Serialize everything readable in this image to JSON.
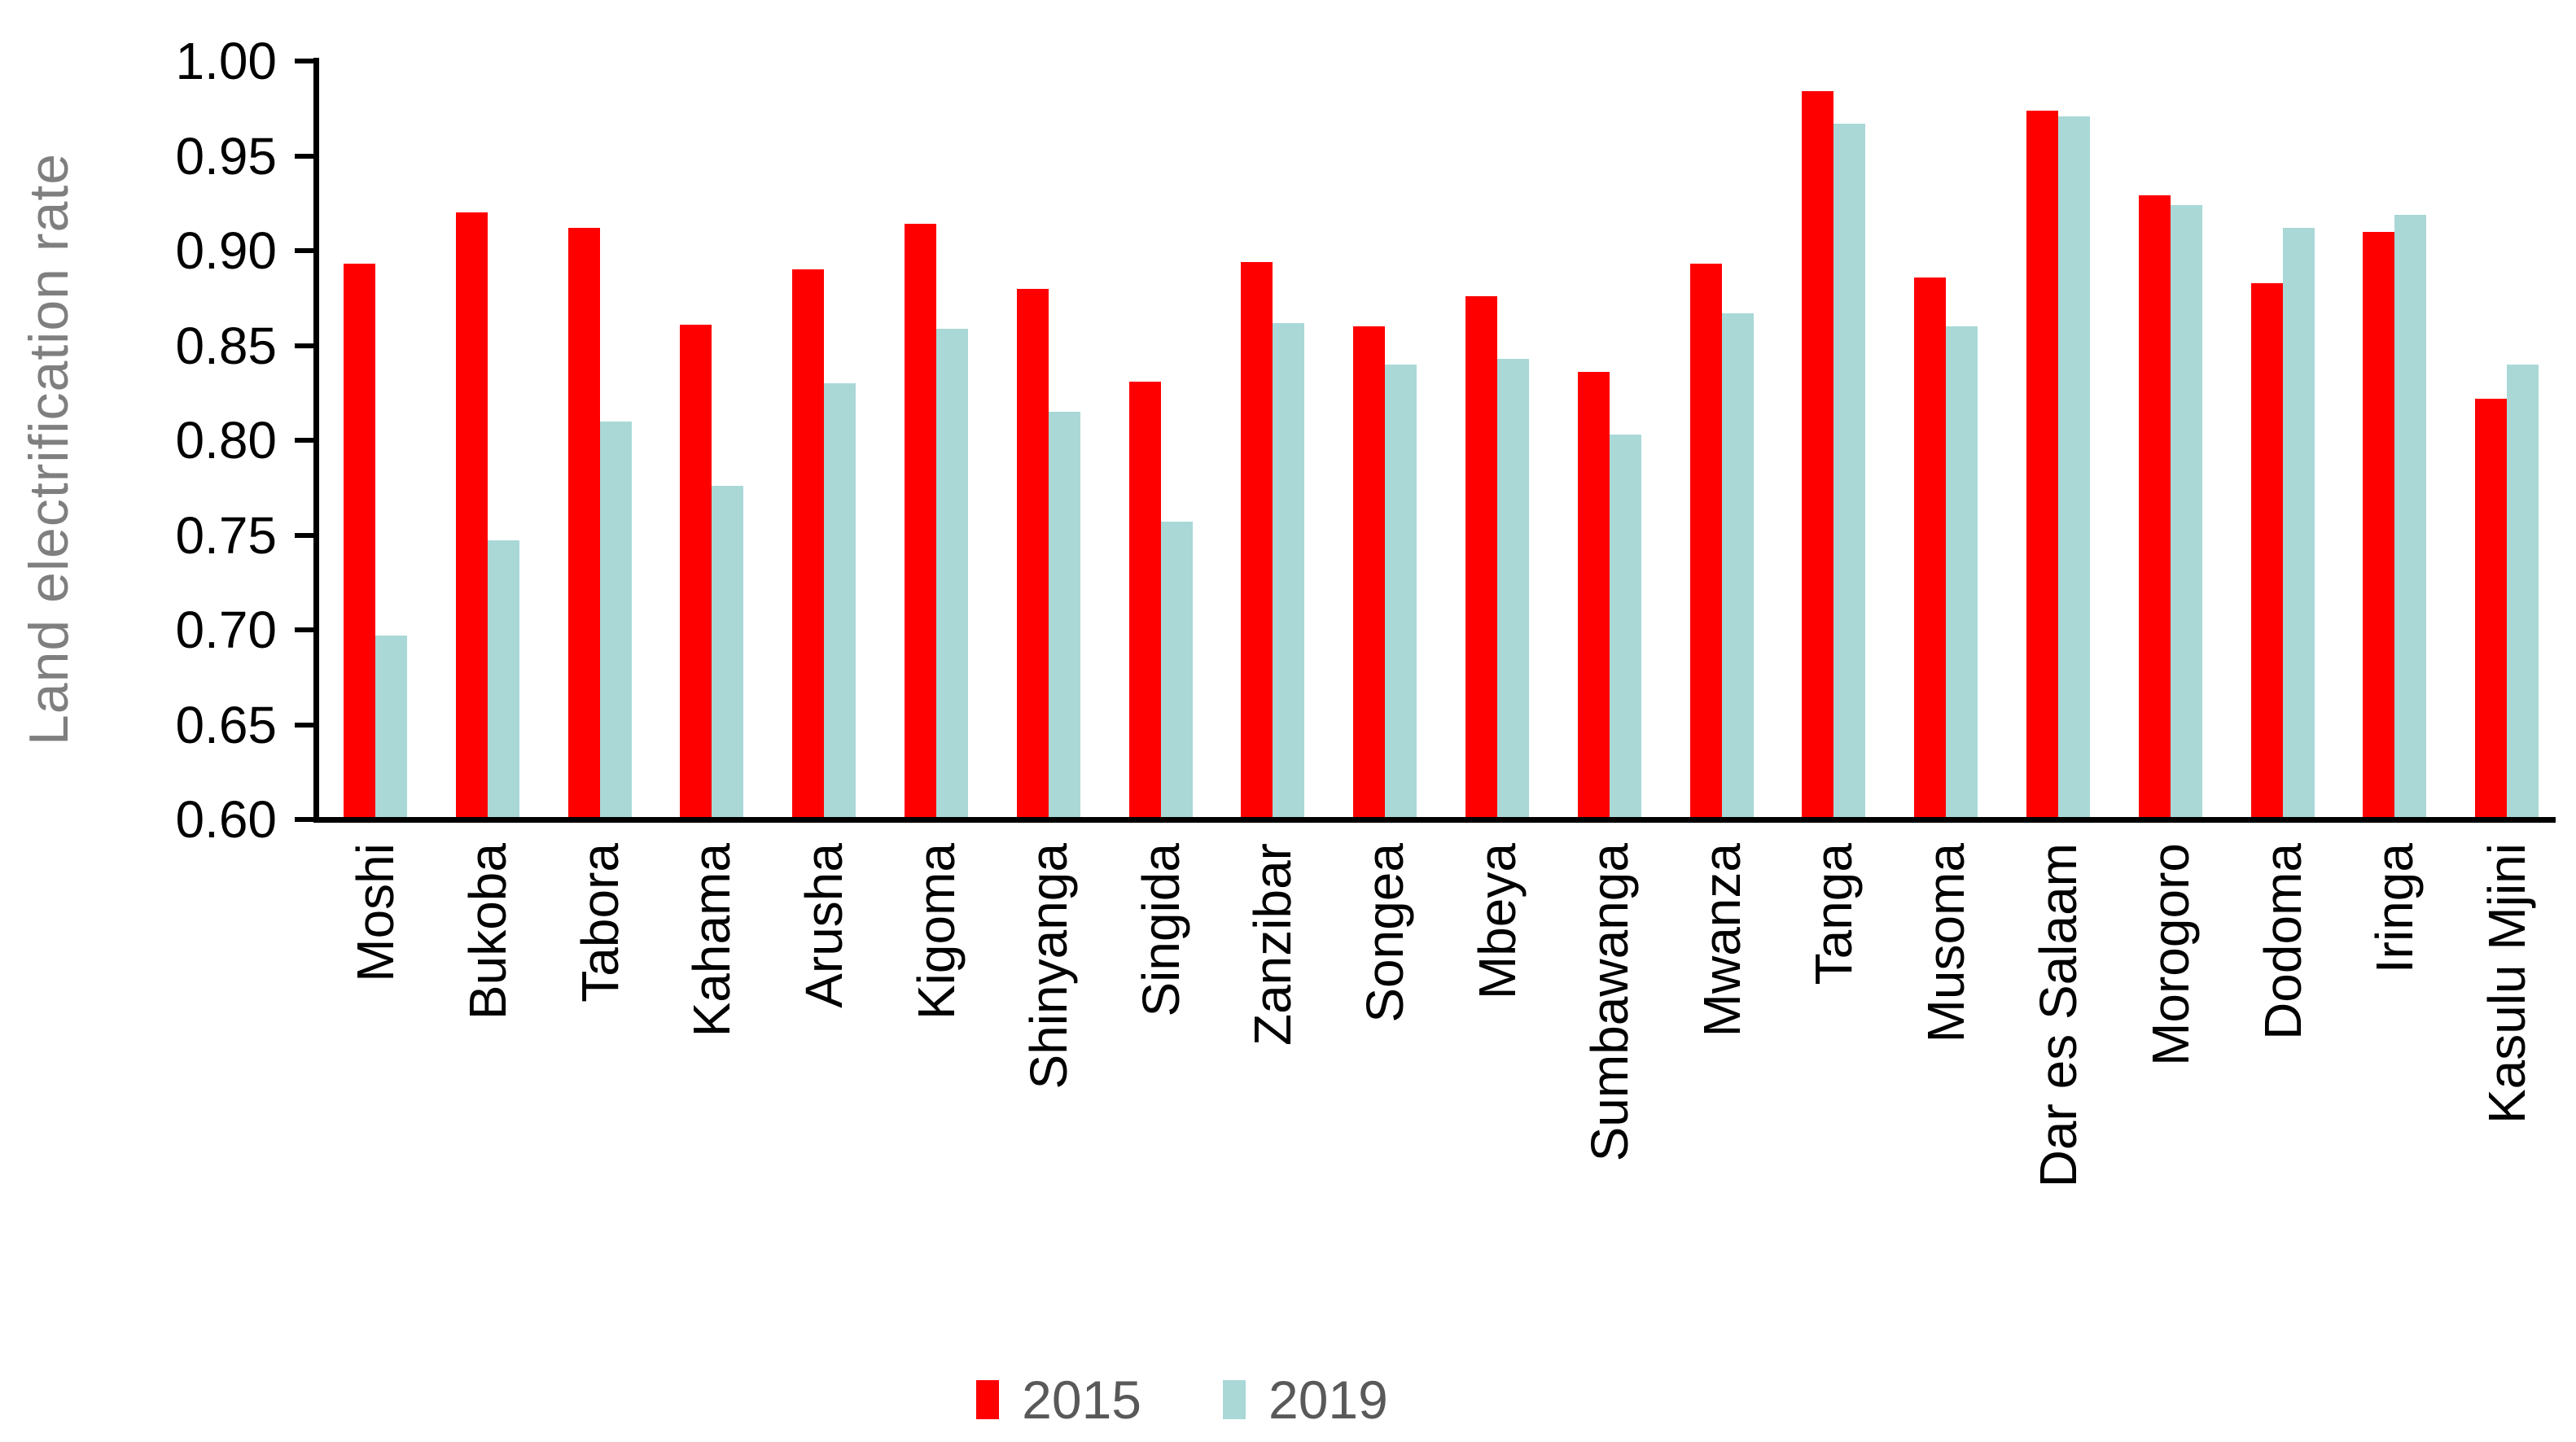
{
  "chart_data": {
    "type": "bar",
    "title": "",
    "ylabel": "Land electrification rate",
    "xlabel": "",
    "ylim": [
      0.6,
      1.0
    ],
    "yticks": [
      1.0,
      0.95,
      0.9,
      0.85,
      0.8,
      0.75,
      0.7,
      0.65,
      0.6
    ],
    "grid": false,
    "legend_position": "bottom",
    "categories": [
      "Moshi",
      "Bukoba",
      "Tabora",
      "Kahama",
      "Arusha",
      "Kigoma",
      "Shinyanga",
      "Singida",
      "Zanzibar",
      "Songea",
      "Mbeya",
      "Sumbawanga",
      "Mwanza",
      "Tanga",
      "Musoma",
      "Dar es Salaam",
      "Morogoro",
      "Dodoma",
      "Iringa",
      "Kasulu Mjini"
    ],
    "series": [
      {
        "name": "2015",
        "color": "#FF0000",
        "values": [
          0.893,
          0.92,
          0.912,
          0.861,
          0.89,
          0.914,
          0.88,
          0.831,
          0.894,
          0.86,
          0.876,
          0.836,
          0.893,
          0.984,
          0.886,
          0.974,
          0.929,
          0.883,
          0.91,
          0.822
        ]
      },
      {
        "name": "2019",
        "color": "#A9D8D7",
        "values": [
          0.697,
          0.747,
          0.81,
          0.776,
          0.83,
          0.859,
          0.815,
          0.757,
          0.862,
          0.84,
          0.843,
          0.803,
          0.867,
          0.967,
          0.86,
          0.971,
          0.924,
          0.912,
          0.919,
          0.84
        ]
      }
    ]
  },
  "axis": {
    "title_color": "#7F7F7F",
    "tick_label_color": "#000000",
    "line_color": "#000000"
  },
  "legend": {
    "text_color": "#595959",
    "items": [
      {
        "label": "2015",
        "color": "#FF0000"
      },
      {
        "label": "2019",
        "color": "#A9D8D7"
      }
    ]
  }
}
